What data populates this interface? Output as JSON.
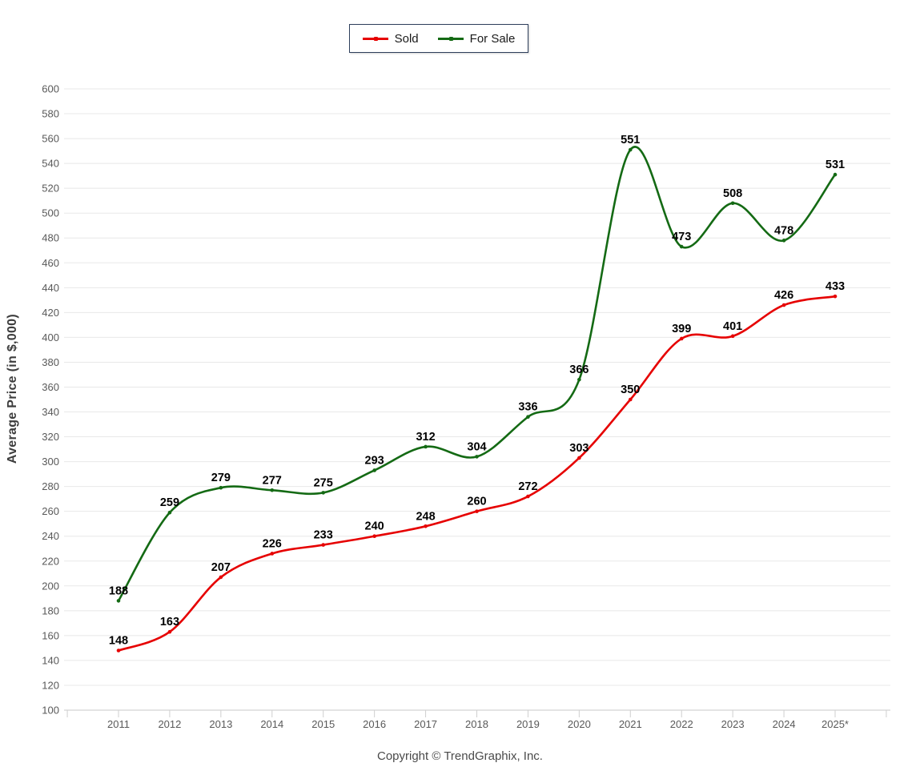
{
  "chart_data": {
    "type": "line",
    "title": "",
    "xlabel": "",
    "ylabel": "Average Price (in $,000)",
    "ylim": [
      100,
      600
    ],
    "ytick_step": 20,
    "grid": "horizontal",
    "legend_position": "top-center",
    "line_style": "smooth-spline",
    "categories": [
      "2011",
      "2012",
      "2013",
      "2014",
      "2015",
      "2016",
      "2017",
      "2018",
      "2019",
      "2020",
      "2021",
      "2022",
      "2023",
      "2024",
      "2025*"
    ],
    "series": [
      {
        "name": "Sold",
        "color": "#e60000",
        "values": [
          148,
          163,
          207,
          226,
          233,
          240,
          248,
          260,
          272,
          303,
          350,
          399,
          401,
          426,
          433
        ]
      },
      {
        "name": "For Sale",
        "color": "#146a14",
        "values": [
          188,
          259,
          279,
          277,
          275,
          293,
          312,
          304,
          336,
          366,
          551,
          473,
          508,
          478,
          531
        ]
      }
    ]
  },
  "colors": {
    "gridline": "#e8e8e8",
    "axis_line": "#c9c9c9",
    "tick_mark": "#cfcfcf",
    "tick_label": "#595959",
    "data_label": "#000000",
    "legend_border": "#2e3f5c",
    "background": "#ffffff"
  },
  "footer": {
    "copyright": "Copyright © TrendGraphix, Inc."
  }
}
